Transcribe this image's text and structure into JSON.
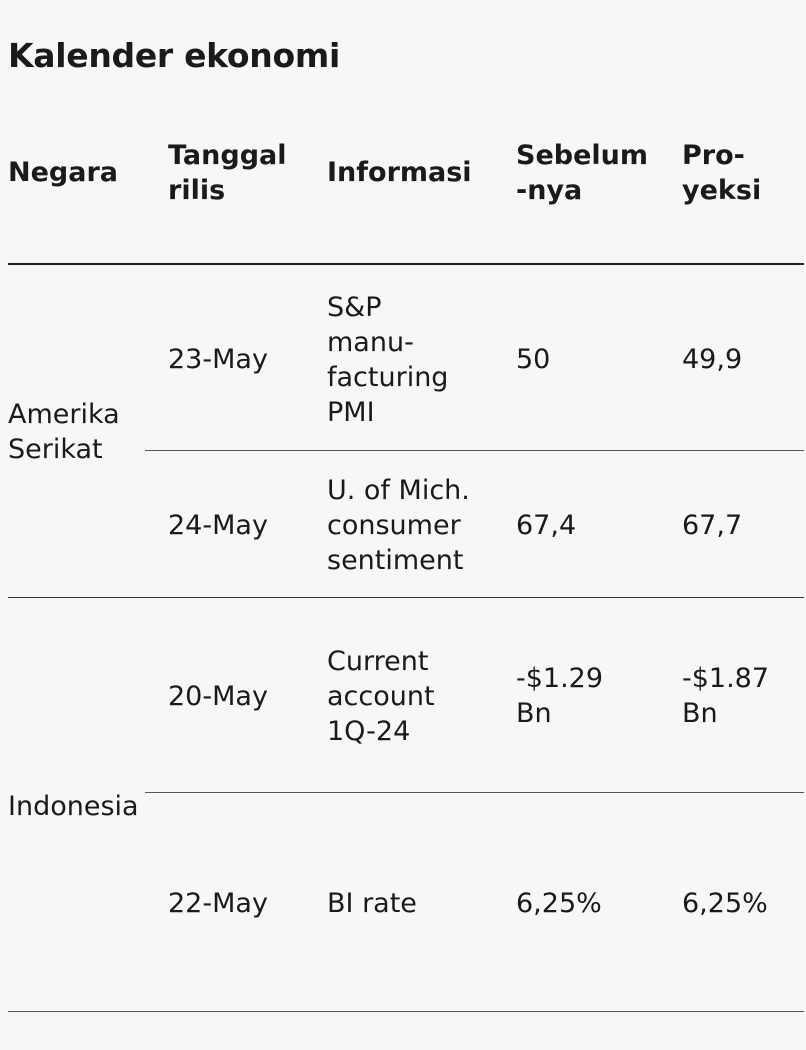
{
  "title": "Kalender ekonomi",
  "headers": {
    "negara": "Negara",
    "tanggal_1": "Tanggal",
    "tanggal_2": "rilis",
    "informasi": "Informasi",
    "sebelum_1": "Sebelum",
    "sebelum_2": "-nya",
    "proyeksi_1": "Pro-",
    "proyeksi_2": "yeksi"
  },
  "groups": [
    {
      "country_lines": [
        "Amerika",
        "Serikat"
      ],
      "rows": [
        {
          "date": "23-May",
          "info_lines": [
            "S&P",
            "manu-",
            "facturing",
            "PMI"
          ],
          "previous_lines": [
            "50"
          ],
          "projection_lines": [
            "49,9"
          ]
        },
        {
          "date": "24-May",
          "info_lines": [
            "U. of Mich.",
            "consumer",
            "sentiment"
          ],
          "previous_lines": [
            "67,4"
          ],
          "projection_lines": [
            "67,7"
          ]
        }
      ]
    },
    {
      "country_lines": [
        "Indonesia"
      ],
      "rows": [
        {
          "date": "20-May",
          "info_lines": [
            "Current",
            "account",
            "1Q-24"
          ],
          "previous_lines": [
            "-$1.29",
            "Bn"
          ],
          "projection_lines": [
            "-$1.87",
            "Bn"
          ]
        },
        {
          "date": "22-May",
          "info_lines": [
            "BI rate"
          ],
          "previous_lines": [
            "6,25%"
          ],
          "projection_lines": [
            "6,25%"
          ]
        }
      ]
    }
  ]
}
